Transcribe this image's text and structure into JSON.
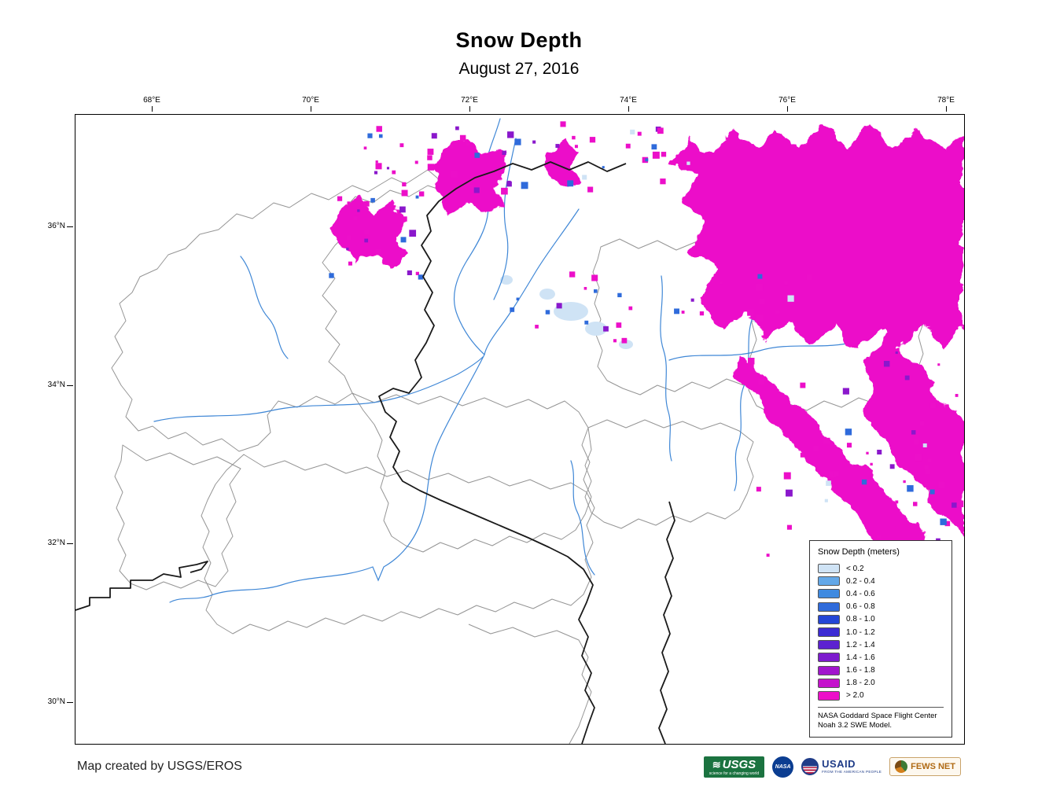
{
  "header": {
    "title": "Snow Depth",
    "subtitle": "August 27, 2016"
  },
  "axes": {
    "longitude_ticks": [
      "68°E",
      "70°E",
      "72°E",
      "74°E",
      "76°E",
      "78°E"
    ],
    "latitude_ticks": [
      "36°N",
      "34°N",
      "32°N",
      "30°N"
    ]
  },
  "legend": {
    "title": "Snow Depth (meters)",
    "entries": [
      {
        "label": "< 0.2",
        "color": "#cfe3f5"
      },
      {
        "label": "0.2 - 0.4",
        "color": "#63a8e8"
      },
      {
        "label": "0.4 - 0.6",
        "color": "#3f8ae0"
      },
      {
        "label": "0.6 - 0.8",
        "color": "#2f6bdb"
      },
      {
        "label": "0.8 - 1.0",
        "color": "#2446d6"
      },
      {
        "label": "1.0 - 1.2",
        "color": "#3c2bd4"
      },
      {
        "label": "1.2 - 1.4",
        "color": "#5c21d0"
      },
      {
        "label": "1.4 - 1.6",
        "color": "#7d1bce"
      },
      {
        "label": "1.6 - 1.8",
        "color": "#a115cd"
      },
      {
        "label": "1.8 - 2.0",
        "color": "#c512cc"
      },
      {
        "label": "> 2.0",
        "color": "#ec0fc9"
      }
    ],
    "source_line1": "NASA Goddard Space Flight Center",
    "source_line2": "Noah 3.2 SWE Model."
  },
  "map_colors": {
    "river": "#3f87d6",
    "watershed": "#8f8f8f",
    "border": "#1a1a1a",
    "snow_max": "#ec0fc9",
    "snow_purple": "#8a18cc",
    "snow_blue": "#2f6bdb",
    "snow_light": "#cfe3f5"
  },
  "footer": {
    "credit": "Map created by USGS/EROS",
    "logos": [
      {
        "name": "USGS",
        "tagline": "science for a changing world"
      },
      {
        "name": "NASA"
      },
      {
        "name": "USAID",
        "tagline": "FROM THE AMERICAN PEOPLE"
      },
      {
        "name": "FEWS NET"
      }
    ]
  }
}
